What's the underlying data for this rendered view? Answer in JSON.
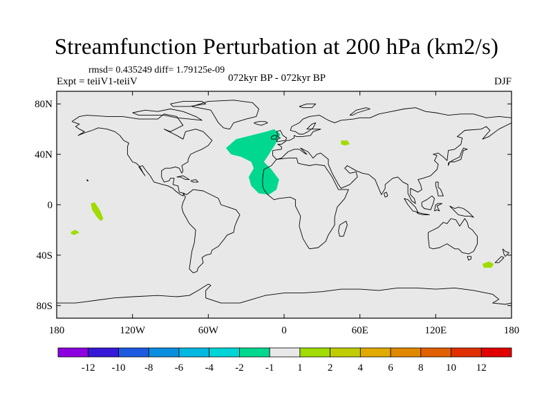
{
  "title": "Streamfunction Perturbation at 200 hPa (km2/s)",
  "stats_line": "rmsd= 0.435249 diff= 1.79125e-09",
  "experiment": "Expt = teiiV1-teiiV",
  "period": "072kyr BP - 072kyr BP",
  "season": "DJF",
  "map": {
    "projection": "cylindrical equidistant",
    "lon_range": [
      -180,
      180
    ],
    "lat_range": [
      -90,
      90
    ],
    "lat_ticks": [
      {
        "value": 80,
        "label": "80N"
      },
      {
        "value": 40,
        "label": "40N"
      },
      {
        "value": 0,
        "label": "0"
      },
      {
        "value": -40,
        "label": "40S"
      },
      {
        "value": -80,
        "label": "80S"
      }
    ],
    "lon_ticks": [
      {
        "value": -180,
        "label": "180"
      },
      {
        "value": -120,
        "label": "120W"
      },
      {
        "value": -60,
        "label": "60W"
      },
      {
        "value": 0,
        "label": "0"
      },
      {
        "value": 60,
        "label": "60E"
      },
      {
        "value": 120,
        "label": "120E"
      },
      {
        "value": 180,
        "label": "180"
      }
    ],
    "background_color": "#e8e8e8",
    "anomalies": [
      {
        "name": "north-atlantic-negative",
        "bin": "-2 to -1",
        "color": "#00d890",
        "outline": [
          [
            -46,
            45
          ],
          [
            -38,
            52
          ],
          [
            -26,
            55
          ],
          [
            -14,
            58
          ],
          [
            -8,
            60
          ],
          [
            -3,
            56
          ],
          [
            -7,
            48
          ],
          [
            -12,
            40
          ],
          [
            -16,
            34
          ],
          [
            -10,
            28
          ],
          [
            -4,
            20
          ],
          [
            -6,
            12
          ],
          [
            -12,
            8
          ],
          [
            -20,
            9
          ],
          [
            -26,
            15
          ],
          [
            -28,
            22
          ],
          [
            -24,
            29
          ],
          [
            -26,
            34
          ],
          [
            -34,
            38
          ],
          [
            -42,
            40
          ]
        ]
      },
      {
        "name": "central-pacific-positive",
        "bin": "1 to 2",
        "color": "#a0dc00",
        "outline": [
          [
            -153,
            1
          ],
          [
            -150,
            2
          ],
          [
            -146,
            -4
          ],
          [
            -143,
            -11
          ],
          [
            -145,
            -13
          ],
          [
            -148,
            -10
          ],
          [
            -152,
            -4
          ]
        ]
      },
      {
        "name": "south-pacific-positive",
        "bin": "1 to 2",
        "color": "#a0dc00",
        "outline": [
          [
            -168,
            -21
          ],
          [
            -165,
            -20
          ],
          [
            -162,
            -22
          ],
          [
            -166,
            -24
          ],
          [
            -169,
            -23
          ]
        ]
      },
      {
        "name": "caspian-positive",
        "bin": "1 to 2",
        "color": "#a0dc00",
        "outline": [
          [
            45,
            51
          ],
          [
            50,
            51
          ],
          [
            52,
            48
          ],
          [
            48,
            47
          ],
          [
            45,
            48
          ]
        ]
      },
      {
        "name": "tasman-positive",
        "bin": "1 to 2",
        "color": "#a0dc00",
        "outline": [
          [
            157,
            -47
          ],
          [
            162,
            -45
          ],
          [
            166,
            -47
          ],
          [
            164,
            -50
          ],
          [
            158,
            -50
          ]
        ]
      }
    ]
  },
  "colorbar": {
    "labels": [
      "-12",
      "-10",
      "-8",
      "-6",
      "-4",
      "-2",
      "-1",
      "1",
      "2",
      "4",
      "6",
      "8",
      "10",
      "12"
    ],
    "colors": [
      "#8c00e0",
      "#3618d8",
      "#1c5be0",
      "#0a8ee0",
      "#00b8e0",
      "#00d4d6",
      "#00d890",
      "#e8e8e8",
      "#a0dc00",
      "#c0cc00",
      "#e0aa00",
      "#e08800",
      "#e06000",
      "#e03000",
      "#e00000"
    ]
  }
}
